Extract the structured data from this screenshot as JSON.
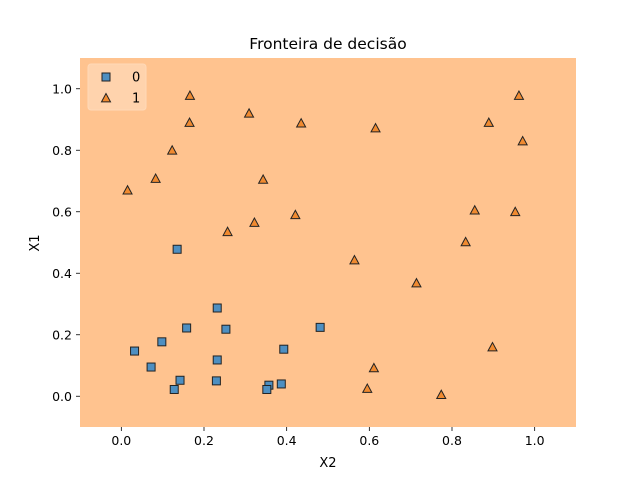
{
  "chart_data": {
    "type": "scatter",
    "title": "Fronteira de decisão",
    "xlabel": "X2",
    "ylabel": "X1",
    "xlim": [
      -0.1,
      1.1
    ],
    "ylim": [
      -0.1,
      1.1
    ],
    "xticks": [
      0.0,
      0.2,
      0.4,
      0.6,
      0.8,
      1.0
    ],
    "yticks": [
      0.0,
      0.2,
      0.4,
      0.6,
      0.8,
      1.0
    ],
    "xtick_labels": [
      "0.0",
      "0.2",
      "0.4",
      "0.6",
      "0.8",
      "1.0"
    ],
    "ytick_labels": [
      "0.0",
      "0.2",
      "0.4",
      "0.6",
      "0.8",
      "1.0"
    ],
    "background_region_color": "#ffc38f",
    "legend_position": "top-left",
    "series": [
      {
        "name": "0",
        "marker": "square",
        "color": "#4e8fc1",
        "points": [
          {
            "x": 0.135,
            "y": 0.478
          },
          {
            "x": 0.232,
            "y": 0.287
          },
          {
            "x": 0.158,
            "y": 0.222
          },
          {
            "x": 0.253,
            "y": 0.218
          },
          {
            "x": 0.481,
            "y": 0.224
          },
          {
            "x": 0.098,
            "y": 0.177
          },
          {
            "x": 0.032,
            "y": 0.147
          },
          {
            "x": 0.393,
            "y": 0.153
          },
          {
            "x": 0.232,
            "y": 0.118
          },
          {
            "x": 0.072,
            "y": 0.095
          },
          {
            "x": 0.142,
            "y": 0.052
          },
          {
            "x": 0.23,
            "y": 0.05
          },
          {
            "x": 0.128,
            "y": 0.022
          },
          {
            "x": 0.357,
            "y": 0.036
          },
          {
            "x": 0.387,
            "y": 0.04
          },
          {
            "x": 0.352,
            "y": 0.022
          }
        ]
      },
      {
        "name": "1",
        "marker": "triangle",
        "color": "#f08a30",
        "points": [
          {
            "x": 0.166,
            "y": 0.978
          },
          {
            "x": 0.962,
            "y": 0.978
          },
          {
            "x": 0.309,
            "y": 0.92
          },
          {
            "x": 0.165,
            "y": 0.89
          },
          {
            "x": 0.435,
            "y": 0.888
          },
          {
            "x": 0.889,
            "y": 0.89
          },
          {
            "x": 0.615,
            "y": 0.872
          },
          {
            "x": 0.971,
            "y": 0.83
          },
          {
            "x": 0.123,
            "y": 0.8
          },
          {
            "x": 0.083,
            "y": 0.708
          },
          {
            "x": 0.343,
            "y": 0.705
          },
          {
            "x": 0.015,
            "y": 0.67
          },
          {
            "x": 0.855,
            "y": 0.605
          },
          {
            "x": 0.953,
            "y": 0.6
          },
          {
            "x": 0.421,
            "y": 0.59
          },
          {
            "x": 0.322,
            "y": 0.565
          },
          {
            "x": 0.257,
            "y": 0.535
          },
          {
            "x": 0.833,
            "y": 0.502
          },
          {
            "x": 0.564,
            "y": 0.443
          },
          {
            "x": 0.714,
            "y": 0.368
          },
          {
            "x": 0.898,
            "y": 0.16
          },
          {
            "x": 0.611,
            "y": 0.092
          },
          {
            "x": 0.595,
            "y": 0.025
          },
          {
            "x": 0.774,
            "y": 0.005
          }
        ]
      }
    ]
  }
}
